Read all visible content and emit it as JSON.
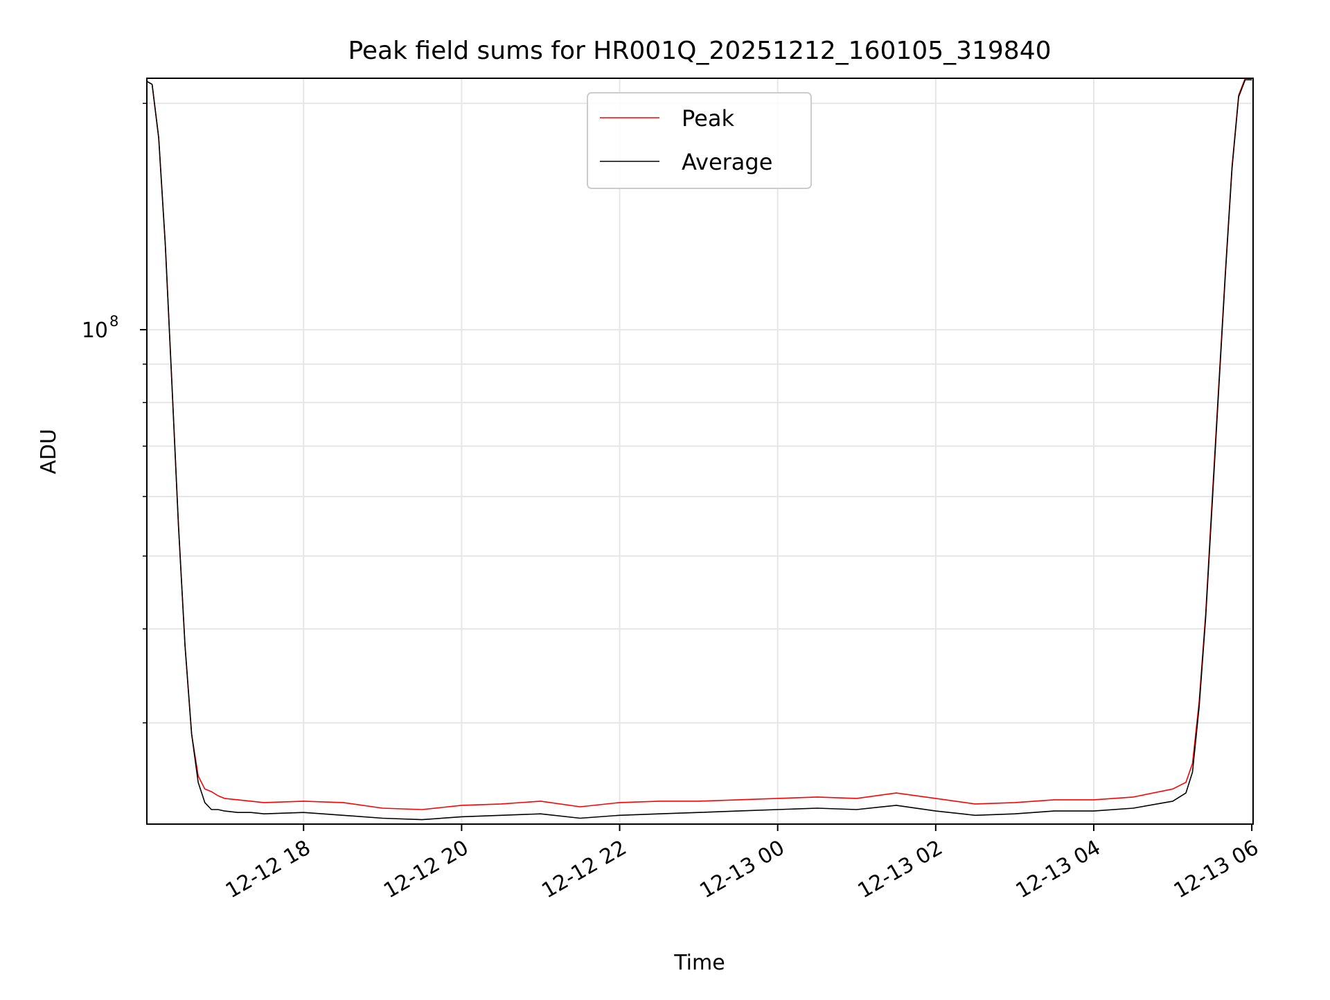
{
  "chart_data": {
    "type": "line",
    "title": "Peak field sums for HR001Q_20251212_160105_319840",
    "xlabel": "Time",
    "ylabel": "ADU",
    "x_axis": {
      "type": "time",
      "range": [
        "2025-12-12 16:01",
        "2025-12-13 06:01"
      ],
      "ticks": [
        {
          "value": "2025-12-12 18:00",
          "label": "12-12 18"
        },
        {
          "value": "2025-12-12 20:00",
          "label": "12-12 20"
        },
        {
          "value": "2025-12-12 22:00",
          "label": "12-12 22"
        },
        {
          "value": "2025-12-13 00:00",
          "label": "12-13 00"
        },
        {
          "value": "2025-12-13 02:00",
          "label": "12-13 02"
        },
        {
          "value": "2025-12-13 04:00",
          "label": "12-13 04"
        },
        {
          "value": "2025-12-13 06:00",
          "label": "12-13 06"
        }
      ]
    },
    "y_axis": {
      "scale": "log",
      "range": [
        22000000,
        216000000
      ],
      "major_ticks": [
        {
          "value": 100000000,
          "label_base": "10",
          "label_exp": "8"
        }
      ],
      "minor_ticks": [
        30000000,
        40000000,
        50000000,
        60000000,
        70000000,
        80000000,
        90000000,
        200000000
      ]
    },
    "grid": true,
    "legend": {
      "position": "upper-center",
      "entries": [
        "Peak",
        "Average"
      ]
    },
    "series": [
      {
        "name": "Peak",
        "color": "#ff0000",
        "x": [
          "2025-12-12 16:01",
          "2025-12-12 16:05",
          "2025-12-12 16:10",
          "2025-12-12 16:15",
          "2025-12-12 16:20",
          "2025-12-12 16:25",
          "2025-12-12 16:30",
          "2025-12-12 16:35",
          "2025-12-12 16:40",
          "2025-12-12 16:45",
          "2025-12-12 16:50",
          "2025-12-12 16:55",
          "2025-12-12 17:00",
          "2025-12-12 17:10",
          "2025-12-12 17:20",
          "2025-12-12 17:30",
          "2025-12-12 18:00",
          "2025-12-12 18:30",
          "2025-12-12 19:00",
          "2025-12-12 19:30",
          "2025-12-12 20:00",
          "2025-12-12 20:30",
          "2025-12-12 21:00",
          "2025-12-12 21:30",
          "2025-12-12 22:00",
          "2025-12-12 22:30",
          "2025-12-12 23:00",
          "2025-12-12 23:30",
          "2025-12-13 00:00",
          "2025-12-13 00:30",
          "2025-12-13 01:00",
          "2025-12-13 01:30",
          "2025-12-13 02:00",
          "2025-12-13 02:30",
          "2025-12-13 03:00",
          "2025-12-13 03:30",
          "2025-12-13 04:00",
          "2025-12-13 04:30",
          "2025-12-13 05:00",
          "2025-12-13 05:10",
          "2025-12-13 05:15",
          "2025-12-13 05:20",
          "2025-12-13 05:25",
          "2025-12-13 05:30",
          "2025-12-13 05:35",
          "2025-12-13 05:40",
          "2025-12-13 05:45",
          "2025-12-13 05:50",
          "2025-12-13 05:55",
          "2025-12-13 06:00"
        ],
        "values": [
          214000000,
          212000000,
          180000000,
          130000000,
          85000000,
          55000000,
          38000000,
          29000000,
          25500000,
          24500000,
          24300000,
          24000000,
          23800000,
          23700000,
          23600000,
          23500000,
          23600000,
          23500000,
          23100000,
          23000000,
          23300000,
          23400000,
          23600000,
          23200000,
          23500000,
          23600000,
          23600000,
          23700000,
          23800000,
          23900000,
          23800000,
          24200000,
          23800000,
          23400000,
          23500000,
          23700000,
          23700000,
          23900000,
          24500000,
          25000000,
          26500000,
          32000000,
          42000000,
          60000000,
          85000000,
          120000000,
          165000000,
          205000000,
          216000000,
          216000000
        ]
      },
      {
        "name": "Average",
        "color": "#000000",
        "x": [
          "2025-12-12 16:01",
          "2025-12-12 16:05",
          "2025-12-12 16:10",
          "2025-12-12 16:15",
          "2025-12-12 16:20",
          "2025-12-12 16:25",
          "2025-12-12 16:30",
          "2025-12-12 16:35",
          "2025-12-12 16:40",
          "2025-12-12 16:45",
          "2025-12-12 16:50",
          "2025-12-12 16:55",
          "2025-12-12 17:00",
          "2025-12-12 17:10",
          "2025-12-12 17:20",
          "2025-12-12 17:30",
          "2025-12-12 18:00",
          "2025-12-12 18:30",
          "2025-12-12 19:00",
          "2025-12-12 19:30",
          "2025-12-12 20:00",
          "2025-12-12 20:30",
          "2025-12-12 21:00",
          "2025-12-12 21:30",
          "2025-12-12 22:00",
          "2025-12-12 22:30",
          "2025-12-12 23:00",
          "2025-12-12 23:30",
          "2025-12-13 00:00",
          "2025-12-13 00:30",
          "2025-12-13 01:00",
          "2025-12-13 01:30",
          "2025-12-13 02:00",
          "2025-12-13 02:30",
          "2025-12-13 03:00",
          "2025-12-13 03:30",
          "2025-12-13 04:00",
          "2025-12-13 04:30",
          "2025-12-13 05:00",
          "2025-12-13 05:10",
          "2025-12-13 05:15",
          "2025-12-13 05:20",
          "2025-12-13 05:25",
          "2025-12-13 05:30",
          "2025-12-13 05:35",
          "2025-12-13 05:40",
          "2025-12-13 05:45",
          "2025-12-13 05:50",
          "2025-12-13 05:55",
          "2025-12-13 06:00"
        ],
        "values": [
          214000000,
          212000000,
          180000000,
          130000000,
          85000000,
          55000000,
          38000000,
          29000000,
          25000000,
          23500000,
          23000000,
          23000000,
          22900000,
          22800000,
          22800000,
          22700000,
          22800000,
          22600000,
          22400000,
          22300000,
          22500000,
          22600000,
          22700000,
          22400000,
          22600000,
          22700000,
          22800000,
          22900000,
          23000000,
          23100000,
          23000000,
          23300000,
          22900000,
          22600000,
          22700000,
          22900000,
          22900000,
          23100000,
          23600000,
          24200000,
          25800000,
          31500000,
          41500000,
          59000000,
          84000000,
          119000000,
          164000000,
          204000000,
          215000000,
          215000000
        ]
      }
    ]
  }
}
